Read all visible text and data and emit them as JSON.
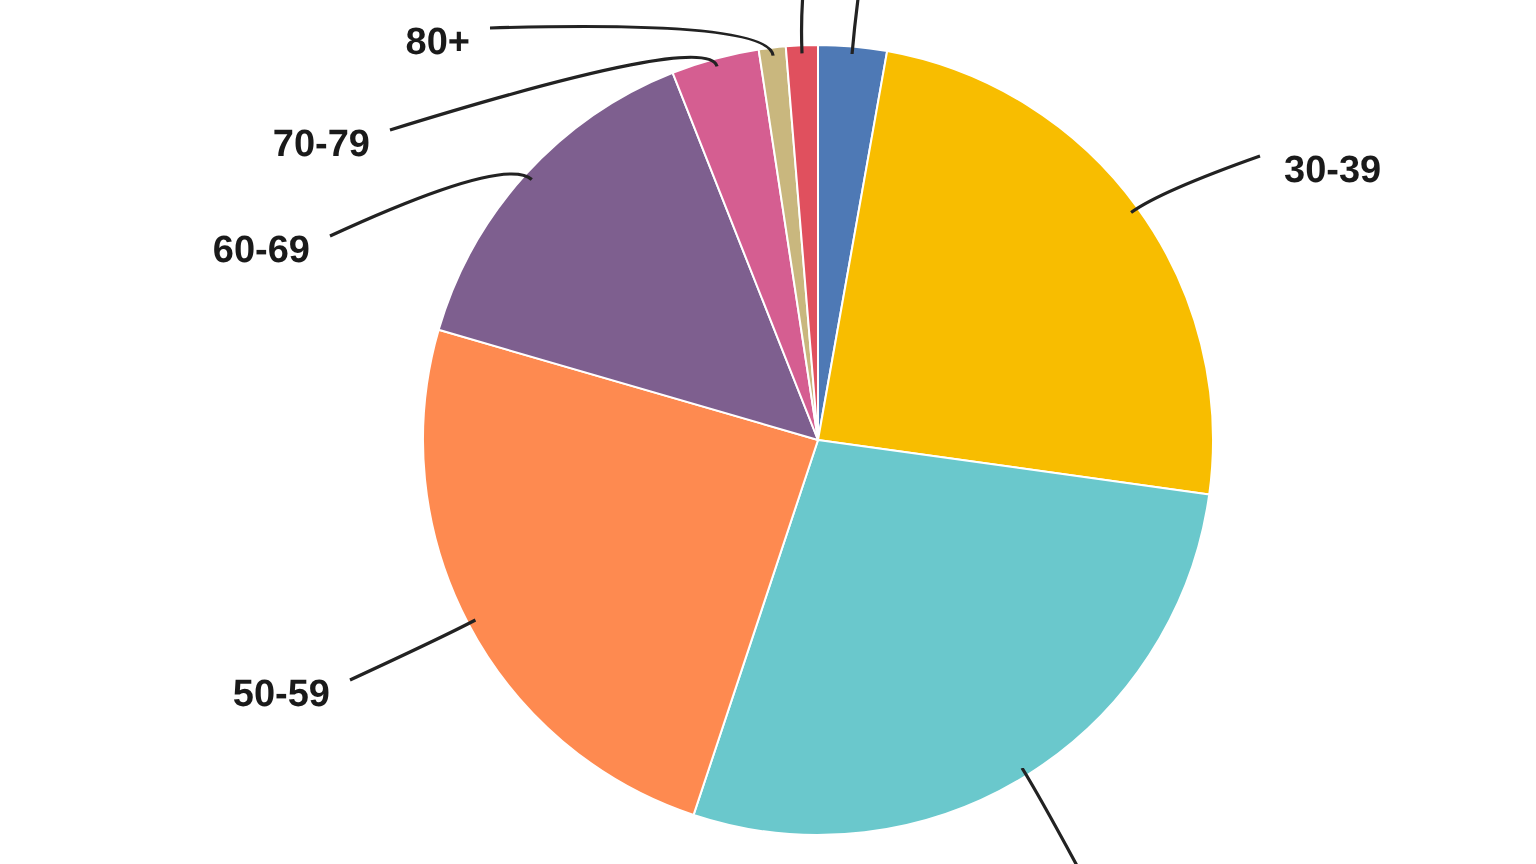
{
  "chart_data": {
    "type": "pie",
    "categories": [
      null,
      "30-39",
      null,
      "50-59",
      "60-69",
      "70-79",
      "80+",
      null
    ],
    "values": [
      2.8,
      24.4,
      27.9,
      24.4,
      14.5,
      3.6,
      1.1,
      1.3
    ],
    "colors": [
      "#4e79b5",
      "#f8bd00",
      "#6ac8cc",
      "#fe8a50",
      "#7e5f8f",
      "#d55e91",
      "#c9b77e",
      "#e0505e"
    ],
    "legend": false
  }
}
